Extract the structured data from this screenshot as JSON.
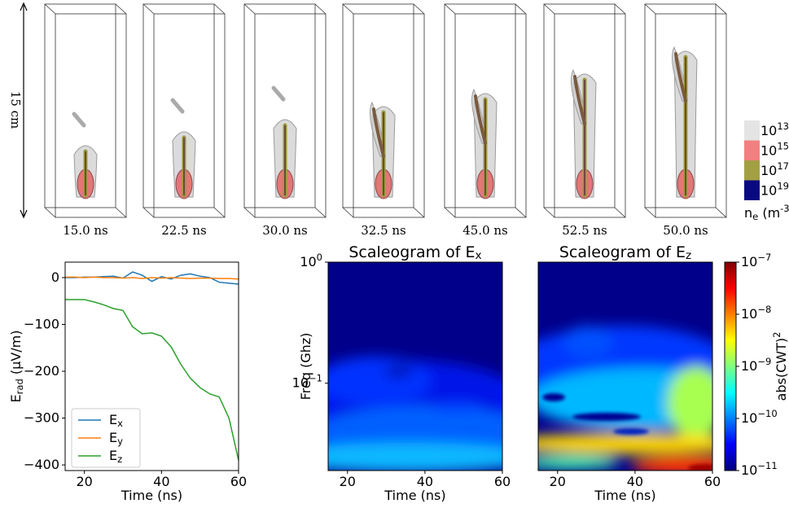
{
  "renderings": {
    "scale_label": "15 cm",
    "times": [
      "15.0 ns",
      "22.5 ns",
      "30.0 ns",
      "32.5 ns",
      "45.0 ns",
      "52.5 ns",
      "50.0 ns"
    ],
    "legend": {
      "title": "n_{e} (m^{-3})",
      "entries": [
        {
          "label": "10^{13}",
          "color": "#e4e4e4"
        },
        {
          "label": "10^{15}",
          "color": "#f28080"
        },
        {
          "label": "10^{17}",
          "color": "#a3a044"
        },
        {
          "label": "10^{19}",
          "color": "#0a0a80"
        }
      ]
    }
  },
  "chart_data": [
    {
      "type": "line",
      "xlabel": "Time (ns)",
      "ylabel": "E_{rad} (μV/m)",
      "x": [
        15,
        17.5,
        20,
        22.5,
        25,
        27.5,
        30,
        32.5,
        35,
        37.5,
        40,
        42.5,
        45,
        47.5,
        50,
        52.5,
        55,
        57.5,
        60
      ],
      "series": [
        {
          "name": "E_{x}",
          "color": "#1f77b4",
          "values": [
            0,
            0,
            1,
            1,
            2,
            3,
            -1,
            12,
            5,
            -8,
            2,
            -3,
            5,
            8,
            3,
            0,
            -10,
            -12,
            -14
          ]
        },
        {
          "name": "E_{y}",
          "color": "#ff7f0e",
          "values": [
            1,
            1,
            0,
            1,
            0,
            0,
            -1,
            0,
            -2,
            0,
            -1,
            0,
            -1,
            -2,
            -1,
            -1,
            -2,
            -2,
            -3
          ]
        },
        {
          "name": "E_{z}",
          "color": "#2ca02c",
          "values": [
            -47,
            -47,
            -47,
            -52,
            -58,
            -66,
            -70,
            -105,
            -120,
            -118,
            -125,
            -148,
            -185,
            -215,
            -235,
            -248,
            -255,
            -300,
            -390
          ]
        }
      ],
      "xlim": [
        15,
        60
      ],
      "xticks": [
        20,
        40,
        60
      ],
      "ylim": [
        -412,
        33
      ],
      "yticks": [
        0,
        {
          "value": -100,
          "label": "−100"
        },
        {
          "value": -200,
          "label": "−200"
        },
        {
          "value": -300,
          "label": "−300"
        },
        {
          "value": -400,
          "label": "−400"
        }
      ],
      "legend": "lower left"
    },
    {
      "type": "heatmap",
      "title": "Scaleogram of E_{x}",
      "xlabel": "Time (ns)",
      "ylabel": "Freq (Ghz)",
      "xlim": [
        15,
        60
      ],
      "xticks": [
        20,
        40,
        60
      ],
      "ylim": [
        0.019,
        1
      ],
      "ylog": true,
      "yticks": [
        {
          "value": 0.1,
          "label": "10^{−1}"
        },
        {
          "value": 1,
          "label": "10^{0}"
        }
      ],
      "colormap": "jet"
    },
    {
      "type": "heatmap",
      "title": "Scaleogram of E_{z}",
      "xlabel": "Time (ns)",
      "xlim": [
        15,
        60
      ],
      "xticks": [
        20,
        40,
        60
      ],
      "ylim": [
        0.019,
        1
      ],
      "ylog": true,
      "colormap": "jet",
      "colorbar": {
        "label": "abs(CWT)^{2}",
        "lim": [
          1e-11,
          1e-07
        ],
        "log": true,
        "ticks": [
          {
            "value": 1e-11,
            "label": "10^{−11}"
          },
          {
            "value": 1e-10,
            "label": "10^{−10}"
          },
          {
            "value": 1e-09,
            "label": "10^{−9}"
          },
          {
            "value": 1e-08,
            "label": "10^{−8}"
          },
          {
            "value": 1e-07,
            "label": "10^{−7}"
          }
        ]
      }
    }
  ]
}
